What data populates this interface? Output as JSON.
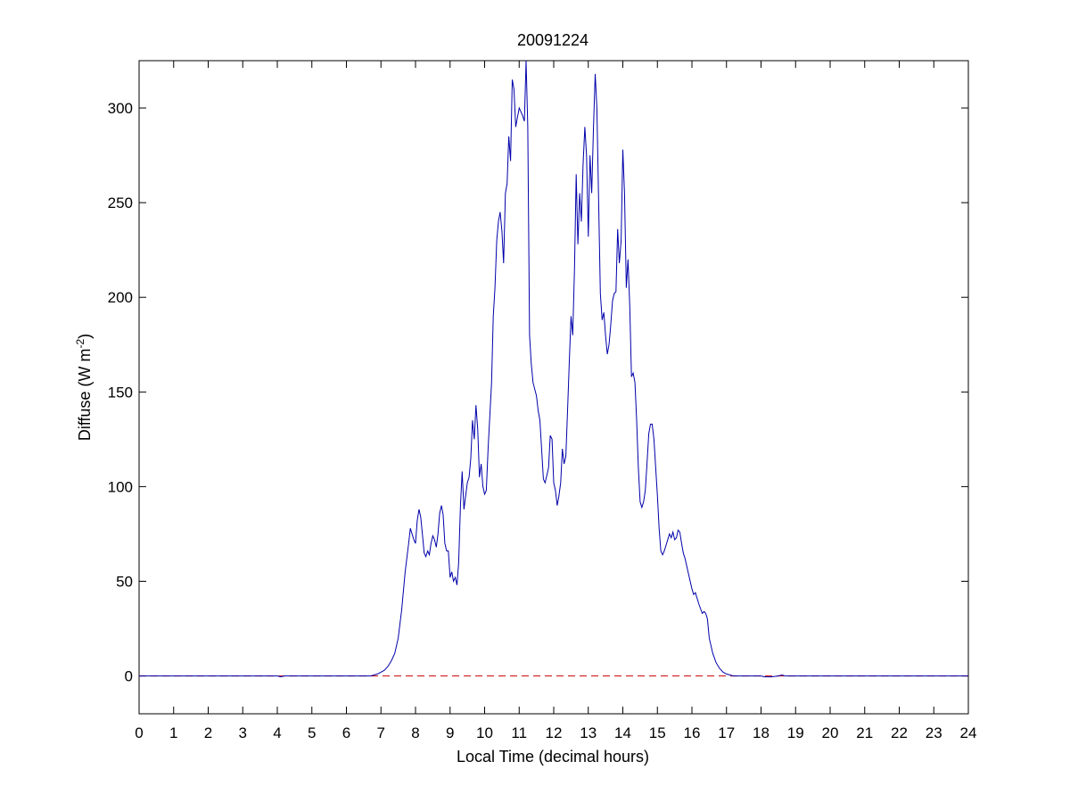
{
  "chart_data": {
    "type": "line",
    "title": "20091224",
    "xlabel": "Local Time (decimal hours)",
    "ylabel_main": "Diffuse (W m",
    "ylabel_sup": "-2",
    "ylabel_close": ")",
    "xlim": [
      0,
      24
    ],
    "ylim": [
      -20,
      325
    ],
    "xticks": [
      0,
      1,
      2,
      3,
      4,
      5,
      6,
      7,
      8,
      9,
      10,
      11,
      12,
      13,
      14,
      15,
      16,
      17,
      18,
      19,
      20,
      21,
      22,
      23,
      24
    ],
    "yticks": [
      0,
      50,
      100,
      150,
      200,
      250,
      300
    ],
    "grid": false,
    "colors": {
      "series": "#0000aa",
      "reference": "#cc0000"
    },
    "series": [
      {
        "values": [
          [
            0,
            0
          ],
          [
            4.0,
            0
          ],
          [
            4.1,
            -0.5
          ],
          [
            4.2,
            0
          ],
          [
            6.7,
            0
          ],
          [
            6.8,
            0.5
          ],
          [
            6.9,
            1
          ],
          [
            7.0,
            2
          ],
          [
            7.1,
            3
          ],
          [
            7.2,
            5
          ],
          [
            7.3,
            8
          ],
          [
            7.4,
            12
          ],
          [
            7.5,
            20
          ],
          [
            7.6,
            35
          ],
          [
            7.7,
            55
          ],
          [
            7.8,
            70
          ],
          [
            7.85,
            78
          ],
          [
            7.9,
            75
          ],
          [
            7.95,
            72
          ],
          [
            8.0,
            70
          ],
          [
            8.05,
            82
          ],
          [
            8.1,
            88
          ],
          [
            8.15,
            84
          ],
          [
            8.2,
            75
          ],
          [
            8.25,
            65
          ],
          [
            8.3,
            63
          ],
          [
            8.35,
            66
          ],
          [
            8.4,
            64
          ],
          [
            8.45,
            70
          ],
          [
            8.5,
            74
          ],
          [
            8.55,
            72
          ],
          [
            8.6,
            68
          ],
          [
            8.65,
            75
          ],
          [
            8.7,
            86
          ],
          [
            8.75,
            90
          ],
          [
            8.8,
            85
          ],
          [
            8.85,
            70
          ],
          [
            8.9,
            66
          ],
          [
            8.95,
            66
          ],
          [
            9.0,
            52
          ],
          [
            9.05,
            55
          ],
          [
            9.1,
            50
          ],
          [
            9.15,
            52
          ],
          [
            9.2,
            48
          ],
          [
            9.25,
            60
          ],
          [
            9.3,
            90
          ],
          [
            9.35,
            108
          ],
          [
            9.4,
            88
          ],
          [
            9.45,
            95
          ],
          [
            9.5,
            102
          ],
          [
            9.55,
            105
          ],
          [
            9.6,
            115
          ],
          [
            9.65,
            135
          ],
          [
            9.7,
            125
          ],
          [
            9.75,
            143
          ],
          [
            9.8,
            130
          ],
          [
            9.85,
            105
          ],
          [
            9.9,
            112
          ],
          [
            9.95,
            100
          ],
          [
            10.0,
            96
          ],
          [
            10.05,
            98
          ],
          [
            10.1,
            120
          ],
          [
            10.2,
            155
          ],
          [
            10.25,
            190
          ],
          [
            10.3,
            205
          ],
          [
            10.35,
            230
          ],
          [
            10.4,
            240
          ],
          [
            10.45,
            245
          ],
          [
            10.5,
            235
          ],
          [
            10.55,
            218
          ],
          [
            10.6,
            255
          ],
          [
            10.65,
            260
          ],
          [
            10.7,
            285
          ],
          [
            10.75,
            272
          ],
          [
            10.8,
            315
          ],
          [
            10.85,
            310
          ],
          [
            10.9,
            290
          ],
          [
            10.95,
            295
          ],
          [
            11.0,
            300
          ],
          [
            11.05,
            298
          ],
          [
            11.1,
            296
          ],
          [
            11.15,
            293
          ],
          [
            11.2,
            330
          ],
          [
            11.25,
            290
          ],
          [
            11.3,
            180
          ],
          [
            11.35,
            165
          ],
          [
            11.4,
            155
          ],
          [
            11.5,
            148
          ],
          [
            11.55,
            140
          ],
          [
            11.6,
            135
          ],
          [
            11.65,
            120
          ],
          [
            11.7,
            104
          ],
          [
            11.75,
            102
          ],
          [
            11.8,
            106
          ],
          [
            11.85,
            110
          ],
          [
            11.9,
            127
          ],
          [
            11.95,
            125
          ],
          [
            12.0,
            102
          ],
          [
            12.05,
            98
          ],
          [
            12.1,
            90
          ],
          [
            12.15,
            95
          ],
          [
            12.2,
            102
          ],
          [
            12.25,
            120
          ],
          [
            12.3,
            112
          ],
          [
            12.35,
            116
          ],
          [
            12.4,
            140
          ],
          [
            12.45,
            165
          ],
          [
            12.5,
            190
          ],
          [
            12.55,
            180
          ],
          [
            12.6,
            215
          ],
          [
            12.65,
            265
          ],
          [
            12.7,
            228
          ],
          [
            12.75,
            255
          ],
          [
            12.8,
            240
          ],
          [
            12.85,
            270
          ],
          [
            12.9,
            290
          ],
          [
            12.95,
            275
          ],
          [
            13.0,
            232
          ],
          [
            13.05,
            275
          ],
          [
            13.1,
            255
          ],
          [
            13.15,
            290
          ],
          [
            13.2,
            318
          ],
          [
            13.25,
            300
          ],
          [
            13.3,
            250
          ],
          [
            13.35,
            202
          ],
          [
            13.4,
            188
          ],
          [
            13.45,
            192
          ],
          [
            13.5,
            180
          ],
          [
            13.55,
            170
          ],
          [
            13.6,
            175
          ],
          [
            13.65,
            185
          ],
          [
            13.7,
            198
          ],
          [
            13.75,
            202
          ],
          [
            13.8,
            203
          ],
          [
            13.85,
            236
          ],
          [
            13.9,
            218
          ],
          [
            13.95,
            230
          ],
          [
            14.0,
            278
          ],
          [
            14.05,
            255
          ],
          [
            14.1,
            205
          ],
          [
            14.15,
            220
          ],
          [
            14.2,
            195
          ],
          [
            14.25,
            158
          ],
          [
            14.3,
            160
          ],
          [
            14.35,
            155
          ],
          [
            14.4,
            135
          ],
          [
            14.45,
            110
          ],
          [
            14.5,
            92
          ],
          [
            14.55,
            89
          ],
          [
            14.6,
            92
          ],
          [
            14.65,
            98
          ],
          [
            14.7,
            112
          ],
          [
            14.75,
            128
          ],
          [
            14.8,
            133
          ],
          [
            14.85,
            133
          ],
          [
            14.9,
            125
          ],
          [
            15.0,
            95
          ],
          [
            15.05,
            78
          ],
          [
            15.1,
            66
          ],
          [
            15.15,
            64
          ],
          [
            15.2,
            66
          ],
          [
            15.3,
            72
          ],
          [
            15.35,
            75
          ],
          [
            15.4,
            73
          ],
          [
            15.45,
            76
          ],
          [
            15.5,
            72
          ],
          [
            15.55,
            73
          ],
          [
            15.6,
            77
          ],
          [
            15.65,
            76
          ],
          [
            15.7,
            70
          ],
          [
            15.75,
            65
          ],
          [
            15.8,
            62
          ],
          [
            15.9,
            54
          ],
          [
            16.0,
            46
          ],
          [
            16.05,
            43
          ],
          [
            16.1,
            44
          ],
          [
            16.2,
            38
          ],
          [
            16.3,
            33
          ],
          [
            16.35,
            34
          ],
          [
            16.4,
            33
          ],
          [
            16.45,
            30
          ],
          [
            16.5,
            20
          ],
          [
            16.6,
            12
          ],
          [
            16.7,
            7
          ],
          [
            16.8,
            4
          ],
          [
            16.9,
            2
          ],
          [
            17.0,
            1
          ],
          [
            17.2,
            0
          ],
          [
            18.0,
            0
          ],
          [
            18.1,
            -0.5
          ],
          [
            18.3,
            -0.5
          ],
          [
            18.5,
            0
          ],
          [
            18.6,
            0.5
          ],
          [
            18.7,
            0
          ],
          [
            24,
            0
          ]
        ]
      }
    ],
    "reference_line": {
      "y": 0,
      "style": "dashed"
    }
  }
}
